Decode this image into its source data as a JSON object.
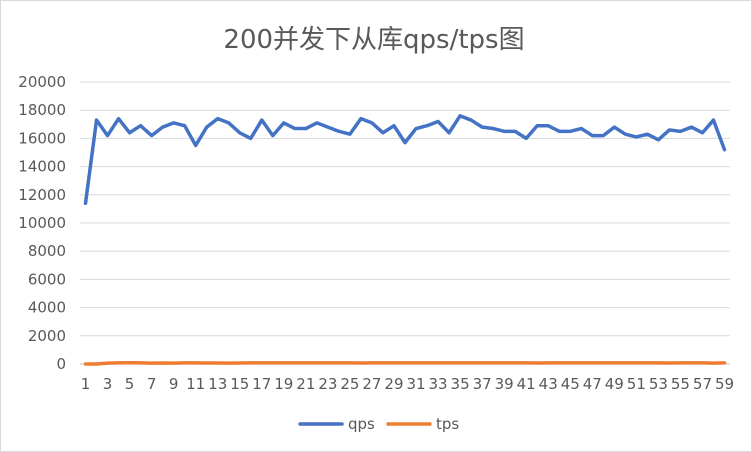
{
  "chart_data": {
    "type": "line",
    "title": "200并发下从库qps/tps图",
    "xlabel": "",
    "ylabel": "",
    "x": [
      1,
      2,
      3,
      4,
      5,
      6,
      7,
      8,
      9,
      10,
      11,
      12,
      13,
      14,
      15,
      16,
      17,
      18,
      19,
      20,
      21,
      22,
      23,
      24,
      25,
      26,
      27,
      28,
      29,
      30,
      31,
      32,
      33,
      34,
      35,
      36,
      37,
      38,
      39,
      40,
      41,
      42,
      43,
      44,
      45,
      46,
      47,
      48,
      49,
      50,
      51,
      52,
      53,
      54,
      55,
      56,
      57,
      58,
      59
    ],
    "ylim": [
      0,
      20000
    ],
    "yticks": [
      0,
      2000,
      4000,
      6000,
      8000,
      10000,
      12000,
      14000,
      16000,
      18000,
      20000
    ],
    "xticks": [
      1,
      3,
      5,
      7,
      9,
      11,
      13,
      15,
      17,
      19,
      21,
      23,
      25,
      27,
      29,
      31,
      33,
      35,
      37,
      39,
      41,
      43,
      45,
      47,
      49,
      51,
      53,
      55,
      57,
      59
    ],
    "grid": true,
    "legend_position": "bottom",
    "series": [
      {
        "name": "qps",
        "color": "#4472C4",
        "values": [
          11400,
          17300,
          16200,
          17400,
          16400,
          16900,
          16200,
          16800,
          17100,
          16900,
          15500,
          16800,
          17400,
          17100,
          16400,
          16000,
          17300,
          16200,
          17100,
          16700,
          16700,
          17100,
          16800,
          16500,
          16300,
          17400,
          17100,
          16400,
          16900,
          15700,
          16700,
          16900,
          17200,
          16400,
          17600,
          17300,
          16800,
          16700,
          16500,
          16500,
          16000,
          16900,
          16900,
          16500,
          16500,
          16700,
          16200,
          16200,
          16800,
          16300,
          16100,
          16300,
          15900,
          16600,
          16500,
          16800,
          16400,
          17300,
          15200
        ]
      },
      {
        "name": "tps",
        "color": "#ED7D31",
        "values": [
          0,
          0,
          60,
          80,
          90,
          80,
          60,
          70,
          60,
          80,
          80,
          70,
          70,
          60,
          70,
          80,
          80,
          80,
          80,
          80,
          80,
          80,
          80,
          80,
          80,
          70,
          80,
          80,
          80,
          80,
          80,
          80,
          80,
          80,
          80,
          80,
          80,
          80,
          80,
          80,
          80,
          70,
          80,
          80,
          80,
          80,
          80,
          80,
          80,
          80,
          80,
          80,
          80,
          70,
          80,
          80,
          80,
          60,
          80
        ]
      }
    ]
  }
}
